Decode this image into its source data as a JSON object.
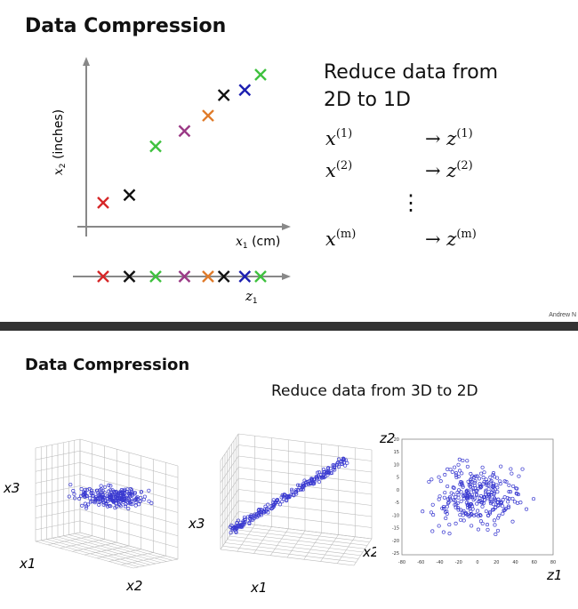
{
  "slide1": {
    "title": "Data Compression",
    "axis_y_label": "x2 (inches)",
    "axis_x_label": "x1 (cm)",
    "line_label": "z1",
    "reduce_line1": "Reduce data from",
    "reduce_line2": "2D to 1D",
    "rows": [
      {
        "lhs": "x",
        "lhs_sup": "(1)",
        "rhs": "→ z",
        "rhs_sup": "(1)"
      },
      {
        "lhs": "x",
        "lhs_sup": "(2)",
        "rhs": "→ z",
        "rhs_sup": "(2)"
      },
      {
        "lhs": "x",
        "lhs_sup": "(m)",
        "rhs": "→ z",
        "rhs_sup": "(m)"
      }
    ],
    "vdots": "⋮",
    "credit": "Andrew N",
    "colors": {
      "red": "#d62728",
      "black": "#111111",
      "green": "#3ec13e",
      "purple": "#9b3a86",
      "orange": "#e07b2a",
      "blue": "#1c1fb0"
    }
  },
  "slide2": {
    "title": "Data Compression",
    "subtitle": "Reduce data from 3D to 2D",
    "plot1": {
      "x1": "x1",
      "x2": "x2",
      "x3": "x3"
    },
    "plot2": {
      "x1": "x1",
      "x2": "x2",
      "x3": "x3"
    },
    "plot3": {
      "z1": "z1",
      "z2": "z2",
      "xticks": [
        "-80",
        "-60",
        "-40",
        "-20",
        "0",
        "20",
        "40",
        "60",
        "80"
      ],
      "yticks": [
        "20",
        "15",
        "10",
        "5",
        "0",
        "-5",
        "-10",
        "-15",
        "-20",
        "-25"
      ]
    }
  },
  "chart_data": [
    {
      "type": "scatter",
      "title": "Data Compression",
      "xlabel": "x1 (cm)",
      "ylabel": "x2 (inches)",
      "points": [
        {
          "color": "red",
          "x": 1.0,
          "y": 1.0
        },
        {
          "color": "black",
          "x": 2.0,
          "y": 1.3
        },
        {
          "color": "green",
          "x": 3.0,
          "y": 3.2
        },
        {
          "color": "purple",
          "x": 4.1,
          "y": 3.8
        },
        {
          "color": "orange",
          "x": 5.0,
          "y": 4.4
        },
        {
          "color": "black",
          "x": 5.6,
          "y": 5.2
        },
        {
          "color": "blue",
          "x": 6.4,
          "y": 5.4
        },
        {
          "color": "green",
          "x": 7.0,
          "y": 6.0
        }
      ],
      "projection_axis": "z1"
    },
    {
      "type": "scatter",
      "xlabel": "z1",
      "ylabel": "z2",
      "xlim": [
        -80,
        80
      ],
      "ylim": [
        -25,
        20
      ],
      "series": [
        {
          "marker": "open-circle",
          "color": "#3a3ad0"
        }
      ]
    }
  ]
}
